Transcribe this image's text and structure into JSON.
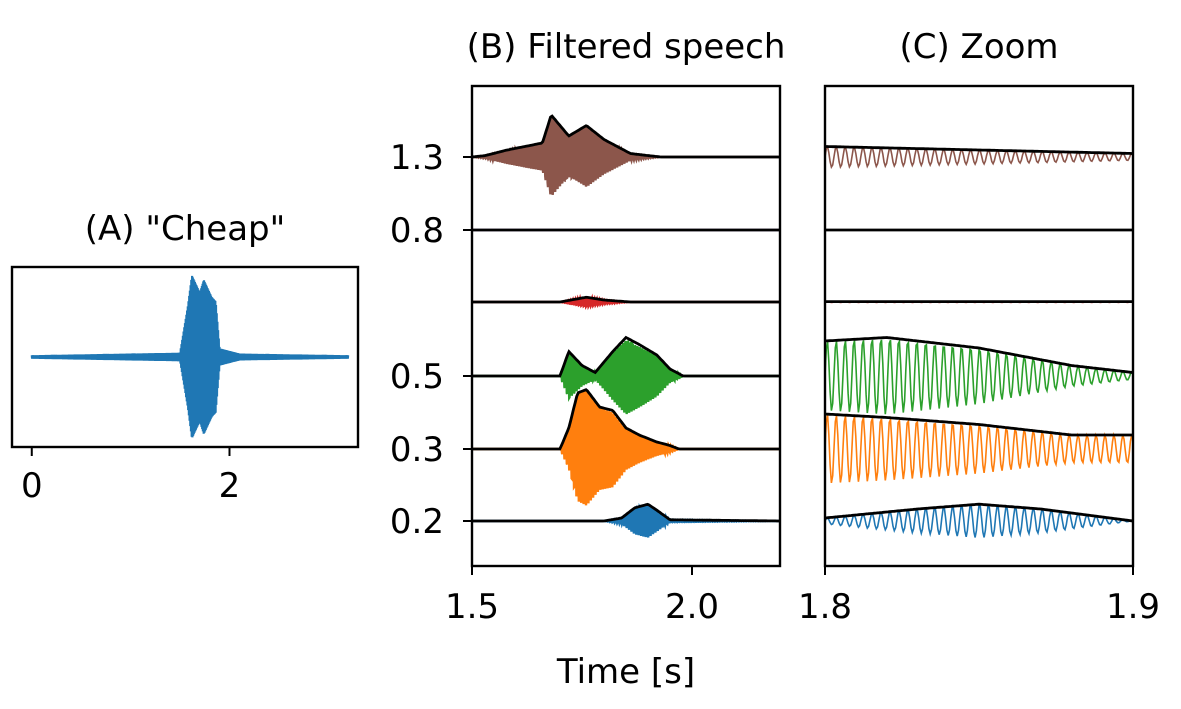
{
  "chart_data": [
    {
      "id": "A",
      "type": "line",
      "title": "(A) \"Cheap\"",
      "xlabel": "",
      "ylabel": "",
      "xlim": [
        -0.2,
        3.3
      ],
      "ylim": [
        -1.05,
        1.05
      ],
      "x_ticks": [
        0,
        2
      ],
      "x_tick_labels": [
        "0",
        "2"
      ],
      "y_tick_labels": [],
      "series": [
        {
          "color": "#1f77b4",
          "description_points": {
            "x": [
              0.0,
              1.5,
              1.58,
              1.62,
              1.66,
              1.7,
              1.74,
              1.78,
              1.82,
              1.86,
              1.9,
              2.1,
              3.2
            ],
            "amplitude": [
              0.02,
              0.05,
              0.6,
              0.95,
              0.85,
              0.75,
              0.9,
              0.8,
              0.7,
              0.65,
              0.1,
              0.04,
              0.02
            ]
          }
        }
      ]
    },
    {
      "id": "B",
      "type": "line",
      "title": "(B) Filtered speech",
      "xlabel": "Time [s]",
      "ylabel": "",
      "xlim": [
        1.5,
        2.2
      ],
      "x_ticks": [
        1.5,
        2.0
      ],
      "x_tick_labels": [
        "1.5",
        "2.0"
      ],
      "y_ticks": [
        0.2,
        0.3,
        0.5,
        0.8,
        1.3
      ],
      "y_tick_labels": [
        "0.2",
        "0.3",
        "0.5",
        "0.8",
        "1.3"
      ],
      "grid": false,
      "series": [
        {
          "center": 0.2,
          "color": "#1f77b4",
          "envelope_x": [
            1.5,
            1.8,
            1.84,
            1.87,
            1.9,
            1.92,
            1.95,
            2.2
          ],
          "envelope_y": [
            0.0,
            0.0,
            0.05,
            0.22,
            0.28,
            0.18,
            0.02,
            0.0
          ]
        },
        {
          "center": 0.3,
          "color": "#ff7f0e",
          "envelope_x": [
            1.5,
            1.7,
            1.72,
            1.74,
            1.76,
            1.79,
            1.82,
            1.85,
            1.88,
            1.92,
            1.95,
            1.97,
            2.2
          ],
          "envelope_y": [
            0.0,
            0.0,
            0.3,
            0.8,
            0.85,
            0.6,
            0.55,
            0.3,
            0.2,
            0.1,
            0.05,
            0.0,
            0.0
          ]
        },
        {
          "center": 0.5,
          "color": "#2ca02c",
          "envelope_x": [
            1.5,
            1.7,
            1.72,
            1.75,
            1.78,
            1.82,
            1.85,
            1.88,
            1.92,
            1.95,
            1.98,
            2.2
          ],
          "envelope_y": [
            0.0,
            0.0,
            0.35,
            0.15,
            0.05,
            0.35,
            0.55,
            0.45,
            0.3,
            0.1,
            0.0,
            0.0
          ]
        },
        {
          "center": 0.65,
          "color": "#d62728",
          "envelope_x": [
            1.5,
            1.7,
            1.74,
            1.76,
            1.8,
            1.86,
            2.2
          ],
          "envelope_y": [
            0.0,
            0.0,
            0.08,
            0.12,
            0.05,
            0.0,
            0.0
          ]
        },
        {
          "center": 0.8,
          "color": "#9467bd",
          "envelope_x": [
            1.5,
            2.2
          ],
          "envelope_y": [
            0.0,
            0.0
          ]
        },
        {
          "center": 1.3,
          "color": "#8c564b",
          "envelope_x": [
            1.5,
            1.53,
            1.58,
            1.62,
            1.66,
            1.68,
            1.72,
            1.76,
            1.8,
            1.86,
            1.9,
            1.93,
            2.2
          ],
          "envelope_y": [
            0.0,
            0.02,
            0.1,
            0.15,
            0.2,
            0.6,
            0.3,
            0.45,
            0.25,
            0.05,
            0.02,
            0.0,
            0.0
          ]
        }
      ]
    },
    {
      "id": "C",
      "type": "line",
      "title": "(C) Zoom",
      "xlabel": "",
      "ylabel": "",
      "xlim": [
        1.8,
        1.9
      ],
      "x_ticks": [
        1.8,
        1.9
      ],
      "x_tick_labels": [
        "1.8",
        "1.9"
      ],
      "y_tick_labels": [],
      "grid": false,
      "series": [
        {
          "center": 0.2,
          "color": "#1f77b4",
          "envelope_x": [
            1.8,
            1.83,
            1.85,
            1.87,
            1.9
          ],
          "envelope_y": [
            0.05,
            0.2,
            0.28,
            0.2,
            0.0
          ]
        },
        {
          "center": 0.3,
          "color": "#ff7f0e",
          "envelope_x": [
            1.8,
            1.82,
            1.85,
            1.88,
            1.9
          ],
          "envelope_y": [
            0.5,
            0.45,
            0.35,
            0.2,
            0.2
          ]
        },
        {
          "center": 0.5,
          "color": "#2ca02c",
          "envelope_x": [
            1.8,
            1.82,
            1.85,
            1.88,
            1.9
          ],
          "envelope_y": [
            0.5,
            0.55,
            0.4,
            0.15,
            0.05
          ]
        },
        {
          "center": 0.65,
          "color": "#d62728",
          "envelope_x": [
            1.8,
            1.9
          ],
          "envelope_y": [
            0.01,
            0.01
          ]
        },
        {
          "center": 0.8,
          "color": "#9467bd",
          "envelope_x": [
            1.8,
            1.9
          ],
          "envelope_y": [
            0.0,
            0.0
          ]
        },
        {
          "center": 1.3,
          "color": "#8c564b",
          "envelope_x": [
            1.8,
            1.85,
            1.9
          ],
          "envelope_y": [
            0.15,
            0.1,
            0.05
          ]
        }
      ]
    }
  ]
}
